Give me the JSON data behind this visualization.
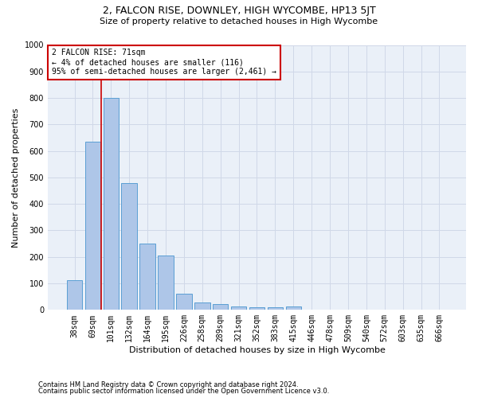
{
  "title": "2, FALCON RISE, DOWNLEY, HIGH WYCOMBE, HP13 5JT",
  "subtitle": "Size of property relative to detached houses in High Wycombe",
  "xlabel": "Distribution of detached houses by size in High Wycombe",
  "ylabel": "Number of detached properties",
  "footnote1": "Contains HM Land Registry data © Crown copyright and database right 2024.",
  "footnote2": "Contains public sector information licensed under the Open Government Licence v3.0.",
  "bar_labels": [
    "38sqm",
    "69sqm",
    "101sqm",
    "132sqm",
    "164sqm",
    "195sqm",
    "226sqm",
    "258sqm",
    "289sqm",
    "321sqm",
    "352sqm",
    "383sqm",
    "415sqm",
    "446sqm",
    "478sqm",
    "509sqm",
    "540sqm",
    "572sqm",
    "603sqm",
    "635sqm",
    "666sqm"
  ],
  "bar_values": [
    112,
    635,
    800,
    480,
    250,
    205,
    60,
    28,
    22,
    12,
    10,
    10,
    12,
    0,
    0,
    0,
    0,
    0,
    0,
    0,
    0
  ],
  "bar_color": "#aec6e8",
  "bar_edge_color": "#5a9fd4",
  "annotation_box_text_line1": "2 FALCON RISE: 71sqm",
  "annotation_box_text_line2": "← 4% of detached houses are smaller (116)",
  "annotation_box_text_line3": "95% of semi-detached houses are larger (2,461) →",
  "annotation_box_color": "#ffffff",
  "annotation_box_edge_color": "#cc0000",
  "annotation_line_color": "#cc0000",
  "marker_bar_index": 1,
  "ylim": [
    0,
    1000
  ],
  "yticks": [
    0,
    100,
    200,
    300,
    400,
    500,
    600,
    700,
    800,
    900,
    1000
  ],
  "grid_color": "#d0d8e8",
  "background_color": "#eaf0f8",
  "title_fontsize": 9,
  "subtitle_fontsize": 8,
  "ylabel_fontsize": 8,
  "xlabel_fontsize": 8,
  "tick_fontsize": 7,
  "footnote_fontsize": 6
}
